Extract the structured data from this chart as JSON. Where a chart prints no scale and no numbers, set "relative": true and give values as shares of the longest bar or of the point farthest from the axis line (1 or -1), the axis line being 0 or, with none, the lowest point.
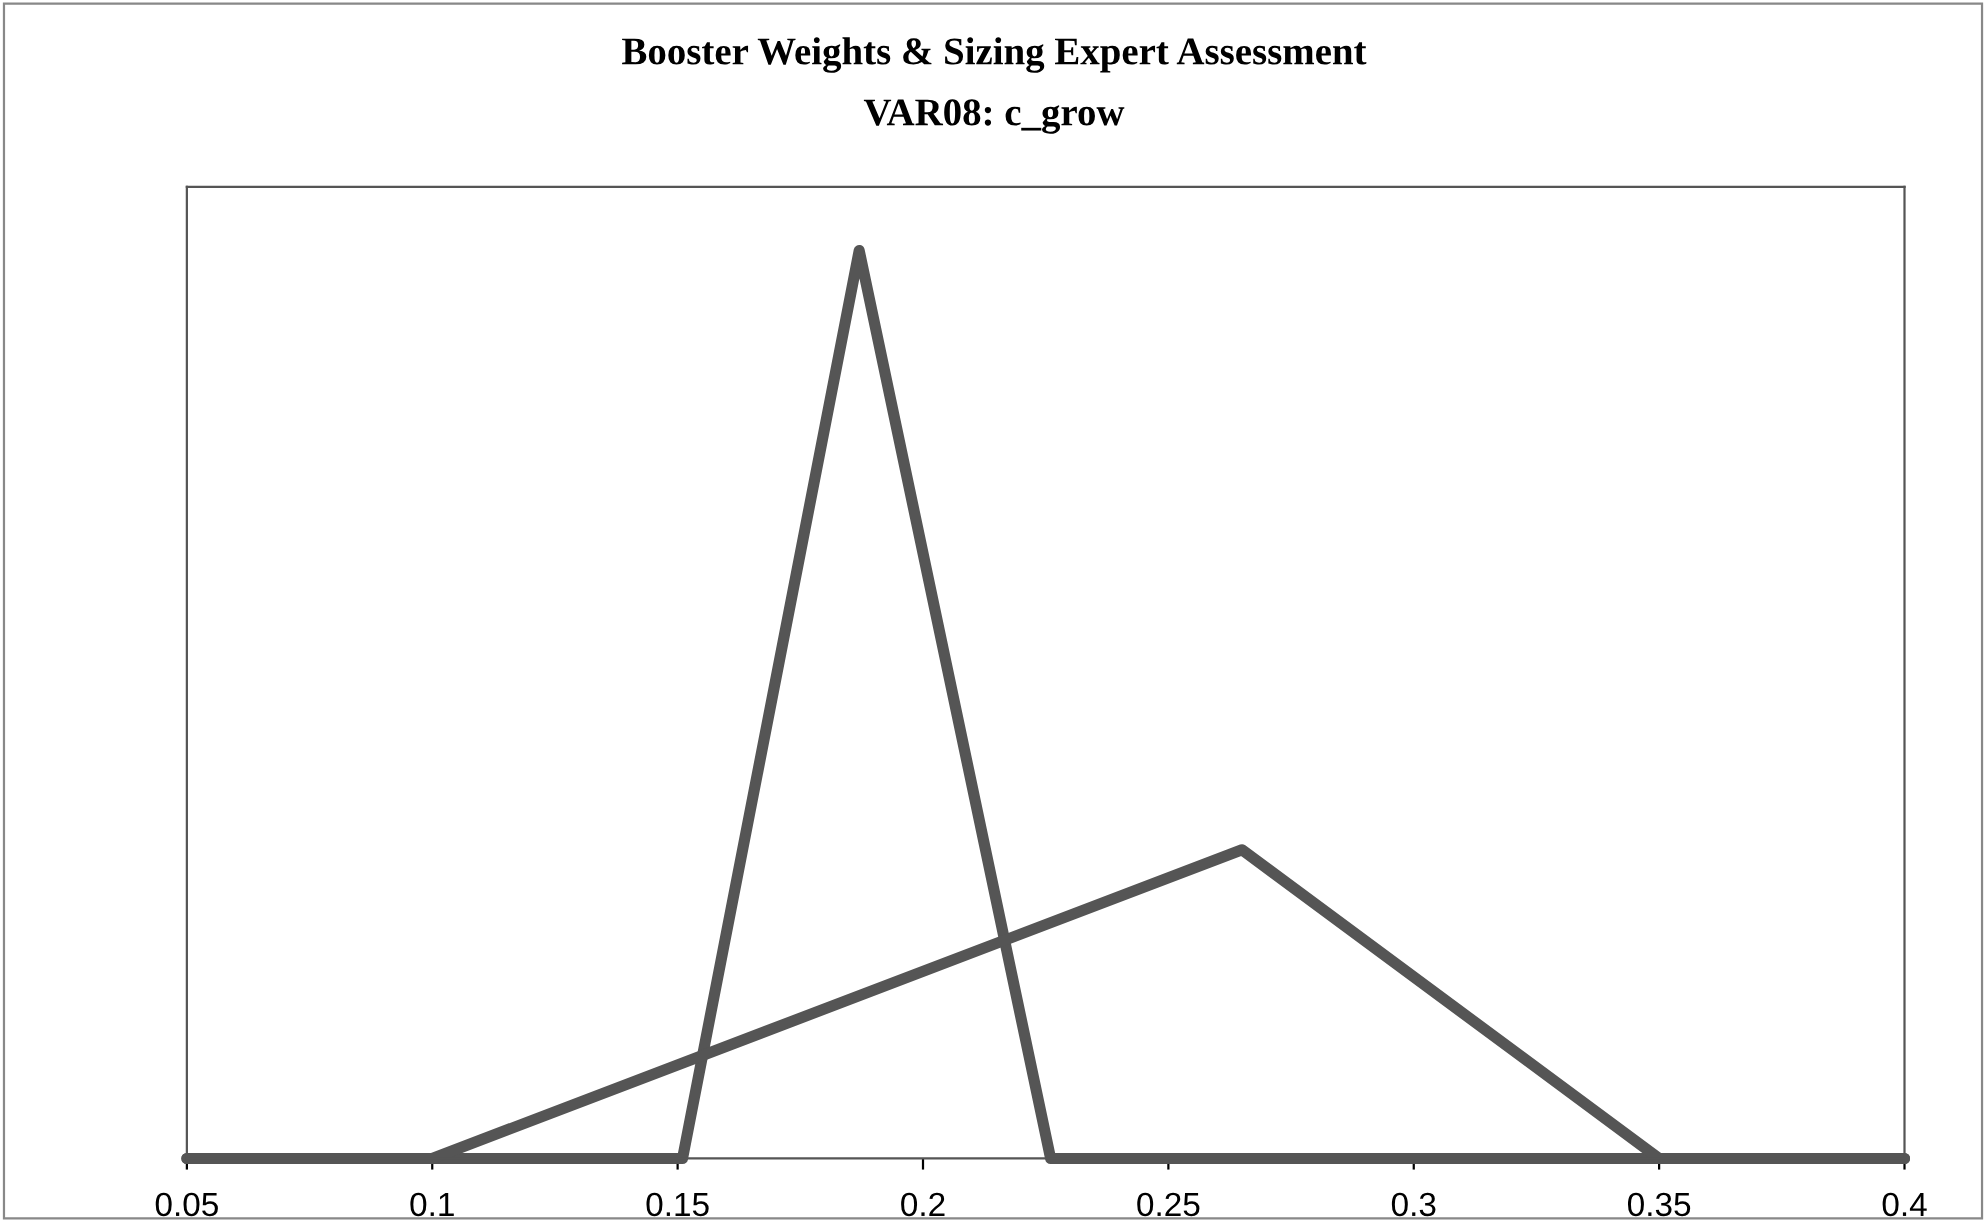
{
  "chart_data": {
    "type": "line",
    "title": "Booster Weights & Sizing Expert Assessment",
    "subtitle": "VAR08: c_grow",
    "relative": true,
    "xlim": [
      0.05,
      0.4
    ],
    "xticks": [
      0.05,
      0.1,
      0.15,
      0.2,
      0.25,
      0.3,
      0.35,
      0.4
    ],
    "grid": false,
    "legend": false,
    "marker": "none",
    "line_style": "solid",
    "series": [
      {
        "color": "#555555",
        "x": [
          0.05,
          0.151,
          0.187,
          0.226,
          0.4
        ],
        "values": [
          0,
          0,
          1,
          0,
          0
        ]
      },
      {
        "color": "#555555",
        "x": [
          0.05,
          0.1,
          0.265,
          0.35,
          0.4
        ],
        "values": [
          0,
          0,
          0.34,
          0,
          0
        ]
      }
    ]
  }
}
